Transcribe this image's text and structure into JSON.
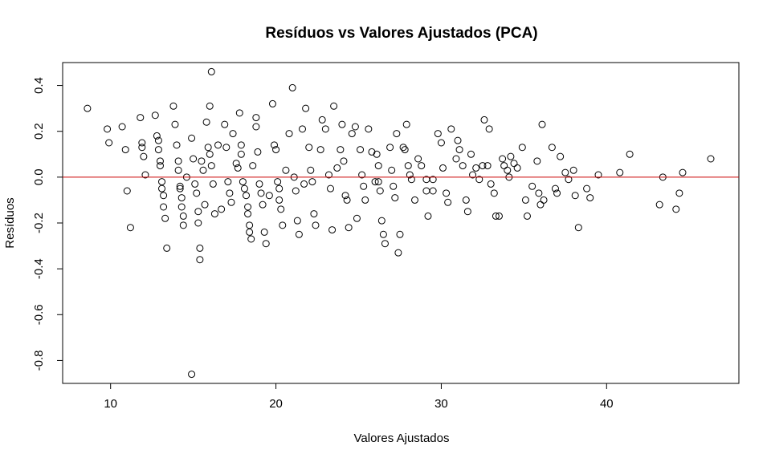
{
  "chart_data": {
    "type": "scatter",
    "title": "Resíduos vs Valores Ajustados (PCA)",
    "xlabel": "Valores Ajustados",
    "ylabel": "Resíduos",
    "xlim": [
      7.1,
      48.0
    ],
    "ylim": [
      -0.9,
      0.5
    ],
    "xticks": [
      10,
      20,
      30,
      40
    ],
    "yticks": [
      -0.8,
      -0.6,
      -0.4,
      -0.2,
      0.0,
      0.2,
      0.4
    ],
    "xtick_labels": [
      "10",
      "20",
      "30",
      "40"
    ],
    "ytick_labels": [
      "-0.8",
      "-0.6",
      "-0.4",
      "-0.2",
      "0.0",
      "0.2",
      "0.4"
    ],
    "grid": false,
    "legend": "none",
    "reference_line": {
      "y": 0.0,
      "color": "#cc0000"
    },
    "point_color": "#000000",
    "points": [
      [
        8.6,
        0.3
      ],
      [
        9.8,
        0.21
      ],
      [
        9.9,
        0.15
      ],
      [
        10.7,
        0.22
      ],
      [
        10.9,
        0.12
      ],
      [
        11.0,
        -0.06
      ],
      [
        11.2,
        -0.22
      ],
      [
        11.8,
        0.26
      ],
      [
        11.9,
        0.15
      ],
      [
        11.9,
        0.13
      ],
      [
        12.0,
        0.09
      ],
      [
        12.1,
        0.01
      ],
      [
        12.7,
        0.27
      ],
      [
        12.8,
        0.18
      ],
      [
        12.9,
        0.16
      ],
      [
        12.9,
        0.12
      ],
      [
        13.0,
        0.07
      ],
      [
        13.0,
        0.05
      ],
      [
        13.1,
        -0.02
      ],
      [
        13.1,
        -0.05
      ],
      [
        13.2,
        -0.08
      ],
      [
        13.2,
        -0.13
      ],
      [
        13.3,
        -0.18
      ],
      [
        13.4,
        -0.31
      ],
      [
        13.8,
        0.31
      ],
      [
        13.9,
        0.23
      ],
      [
        14.0,
        0.14
      ],
      [
        14.1,
        0.07
      ],
      [
        14.1,
        0.03
      ],
      [
        14.2,
        -0.04
      ],
      [
        14.2,
        -0.05
      ],
      [
        14.3,
        -0.09
      ],
      [
        14.3,
        -0.13
      ],
      [
        14.4,
        -0.17
      ],
      [
        14.4,
        -0.21
      ],
      [
        14.6,
        0.0
      ],
      [
        14.9,
        0.17
      ],
      [
        15.0,
        0.08
      ],
      [
        15.1,
        -0.03
      ],
      [
        15.2,
        -0.07
      ],
      [
        15.3,
        -0.15
      ],
      [
        15.3,
        -0.2
      ],
      [
        15.4,
        -0.31
      ],
      [
        15.4,
        -0.36
      ],
      [
        15.5,
        0.07
      ],
      [
        15.6,
        0.03
      ],
      [
        15.7,
        -0.12
      ],
      [
        15.8,
        0.24
      ],
      [
        15.9,
        0.13
      ],
      [
        16.0,
        0.31
      ],
      [
        16.0,
        0.1
      ],
      [
        16.1,
        0.46
      ],
      [
        16.1,
        0.05
      ],
      [
        16.2,
        -0.03
      ],
      [
        16.3,
        -0.16
      ],
      [
        16.5,
        0.14
      ],
      [
        16.7,
        -0.14
      ],
      [
        16.9,
        0.23
      ],
      [
        17.0,
        0.13
      ],
      [
        17.1,
        -0.02
      ],
      [
        17.2,
        -0.07
      ],
      [
        17.3,
        -0.11
      ],
      [
        17.4,
        0.19
      ],
      [
        17.6,
        0.06
      ],
      [
        17.7,
        0.04
      ],
      [
        17.8,
        0.28
      ],
      [
        17.9,
        0.14
      ],
      [
        17.9,
        0.1
      ],
      [
        18.0,
        -0.02
      ],
      [
        18.1,
        -0.05
      ],
      [
        18.2,
        -0.08
      ],
      [
        18.3,
        -0.13
      ],
      [
        18.3,
        -0.16
      ],
      [
        18.4,
        -0.21
      ],
      [
        18.4,
        -0.24
      ],
      [
        18.5,
        -0.27
      ],
      [
        18.6,
        0.05
      ],
      [
        18.8,
        0.26
      ],
      [
        18.8,
        0.22
      ],
      [
        18.9,
        0.11
      ],
      [
        19.0,
        -0.03
      ],
      [
        19.1,
        -0.07
      ],
      [
        19.2,
        -0.12
      ],
      [
        19.3,
        -0.24
      ],
      [
        19.4,
        -0.29
      ],
      [
        19.6,
        -0.08
      ],
      [
        19.8,
        0.32
      ],
      [
        19.9,
        0.14
      ],
      [
        20.0,
        0.12
      ],
      [
        20.1,
        -0.02
      ],
      [
        20.2,
        -0.05
      ],
      [
        20.2,
        -0.1
      ],
      [
        20.3,
        -0.14
      ],
      [
        20.4,
        -0.21
      ],
      [
        20.6,
        0.03
      ],
      [
        20.8,
        0.19
      ],
      [
        21.0,
        0.39
      ],
      [
        21.1,
        0.0
      ],
      [
        21.2,
        -0.06
      ],
      [
        21.3,
        -0.19
      ],
      [
        21.4,
        -0.25
      ],
      [
        21.6,
        0.21
      ],
      [
        21.7,
        -0.03
      ],
      [
        21.8,
        0.3
      ],
      [
        22.0,
        0.13
      ],
      [
        22.1,
        0.03
      ],
      [
        22.2,
        -0.02
      ],
      [
        22.3,
        -0.16
      ],
      [
        22.4,
        -0.21
      ],
      [
        22.7,
        0.12
      ],
      [
        22.8,
        0.25
      ],
      [
        23.0,
        0.21
      ],
      [
        23.2,
        0.01
      ],
      [
        23.3,
        -0.05
      ],
      [
        23.4,
        -0.23
      ],
      [
        23.5,
        0.31
      ],
      [
        23.7,
        0.04
      ],
      [
        23.9,
        0.12
      ],
      [
        24.0,
        0.23
      ],
      [
        24.1,
        0.07
      ],
      [
        24.2,
        -0.08
      ],
      [
        24.3,
        -0.1
      ],
      [
        24.4,
        -0.22
      ],
      [
        24.6,
        0.19
      ],
      [
        24.8,
        0.22
      ],
      [
        24.9,
        -0.18
      ],
      [
        25.1,
        0.12
      ],
      [
        25.2,
        0.01
      ],
      [
        25.3,
        -0.04
      ],
      [
        25.4,
        -0.1
      ],
      [
        25.6,
        0.21
      ],
      [
        25.8,
        0.11
      ],
      [
        26.0,
        -0.02
      ],
      [
        26.1,
        0.1
      ],
      [
        26.2,
        0.05
      ],
      [
        26.2,
        -0.02
      ],
      [
        26.3,
        -0.06
      ],
      [
        26.4,
        -0.19
      ],
      [
        26.5,
        -0.25
      ],
      [
        26.6,
        -0.29
      ],
      [
        26.9,
        0.13
      ],
      [
        27.0,
        0.03
      ],
      [
        27.1,
        -0.04
      ],
      [
        27.2,
        -0.09
      ],
      [
        27.3,
        0.19
      ],
      [
        27.4,
        -0.33
      ],
      [
        27.5,
        -0.25
      ],
      [
        27.7,
        0.13
      ],
      [
        27.8,
        0.12
      ],
      [
        27.9,
        0.23
      ],
      [
        28.0,
        0.05
      ],
      [
        28.1,
        0.01
      ],
      [
        28.2,
        -0.01
      ],
      [
        28.4,
        -0.1
      ],
      [
        28.6,
        0.08
      ],
      [
        28.8,
        0.05
      ],
      [
        29.1,
        -0.01
      ],
      [
        29.1,
        -0.06
      ],
      [
        29.2,
        -0.17
      ],
      [
        29.5,
        -0.01
      ],
      [
        29.5,
        -0.06
      ],
      [
        29.8,
        0.19
      ],
      [
        30.0,
        0.15
      ],
      [
        30.1,
        0.04
      ],
      [
        30.3,
        -0.07
      ],
      [
        30.4,
        -0.11
      ],
      [
        30.6,
        0.21
      ],
      [
        30.9,
        0.08
      ],
      [
        31.0,
        0.16
      ],
      [
        31.1,
        0.12
      ],
      [
        31.3,
        0.05
      ],
      [
        31.5,
        -0.1
      ],
      [
        31.6,
        -0.15
      ],
      [
        31.8,
        0.1
      ],
      [
        31.9,
        0.01
      ],
      [
        32.1,
        0.04
      ],
      [
        32.3,
        -0.01
      ],
      [
        32.5,
        0.05
      ],
      [
        32.6,
        0.25
      ],
      [
        32.8,
        0.05
      ],
      [
        32.9,
        0.21
      ],
      [
        33.0,
        -0.03
      ],
      [
        33.2,
        -0.07
      ],
      [
        33.3,
        -0.17
      ],
      [
        33.5,
        -0.17
      ],
      [
        33.7,
        0.08
      ],
      [
        33.8,
        0.05
      ],
      [
        34.0,
        0.03
      ],
      [
        34.1,
        0.0
      ],
      [
        34.2,
        0.09
      ],
      [
        34.4,
        0.06
      ],
      [
        34.6,
        0.04
      ],
      [
        34.9,
        0.13
      ],
      [
        35.1,
        -0.1
      ],
      [
        35.2,
        -0.17
      ],
      [
        35.5,
        -0.04
      ],
      [
        35.8,
        0.07
      ],
      [
        35.9,
        -0.07
      ],
      [
        36.0,
        -0.12
      ],
      [
        36.1,
        0.23
      ],
      [
        36.2,
        -0.1
      ],
      [
        36.7,
        0.13
      ],
      [
        36.9,
        -0.05
      ],
      [
        37.0,
        -0.07
      ],
      [
        37.2,
        0.09
      ],
      [
        37.5,
        0.02
      ],
      [
        37.7,
        -0.01
      ],
      [
        38.0,
        0.03
      ],
      [
        38.1,
        -0.08
      ],
      [
        38.3,
        -0.22
      ],
      [
        38.8,
        -0.05
      ],
      [
        39.0,
        -0.09
      ],
      [
        39.5,
        0.01
      ],
      [
        40.8,
        0.02
      ],
      [
        41.4,
        0.1
      ],
      [
        43.2,
        -0.12
      ],
      [
        43.4,
        0.0
      ],
      [
        44.2,
        -0.14
      ],
      [
        44.4,
        -0.07
      ],
      [
        44.6,
        0.02
      ],
      [
        46.3,
        0.08
      ],
      [
        14.9,
        -0.86
      ]
    ]
  }
}
